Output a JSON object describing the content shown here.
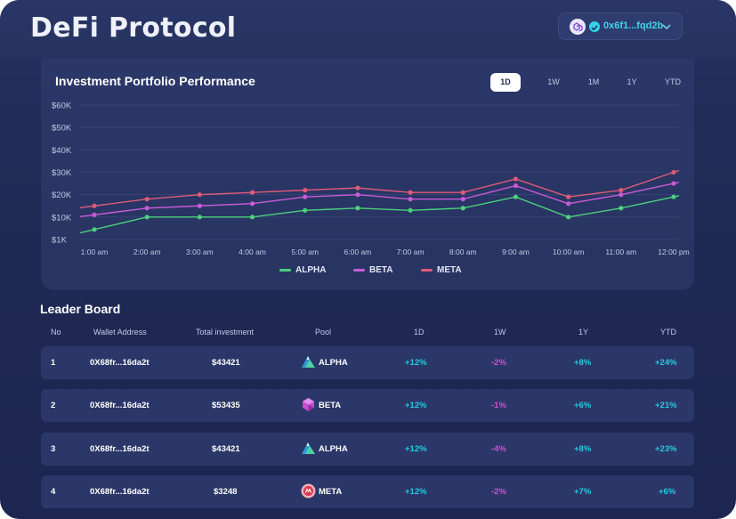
{
  "app": {
    "title": "DeFi Protocol",
    "wallet_address": "0x6f1...fqd2b"
  },
  "chart_section": {
    "title": "Investment Portfolio Performance",
    "ranges": [
      "1D",
      "1W",
      "1M",
      "1Y",
      "YTD"
    ],
    "active_range": "1D"
  },
  "chart_data": {
    "type": "line",
    "title": "Investment Portfolio Performance",
    "x": [
      "1:00 am",
      "2:00 am",
      "3:00 am",
      "4:00 am",
      "5:00 am",
      "6:00 am",
      "7:00 am",
      "8:00 am",
      "9:00 am",
      "10:00 am",
      "11:00 am",
      "12:00 pm"
    ],
    "y_ticks": [
      "$60K",
      "$50K",
      "$40K",
      "$30K",
      "$20K",
      "$10K",
      "$1K"
    ],
    "ylim": [
      1,
      60
    ],
    "y_unit": "K",
    "grid": true,
    "legend_position": "bottom",
    "series": [
      {
        "name": "ALPHA",
        "color": "#4cd07d",
        "values": [
          5,
          10,
          10,
          10,
          13,
          14,
          13,
          14,
          19,
          10,
          14,
          19
        ]
      },
      {
        "name": "BETA",
        "color": "#c75bd6",
        "values": [
          11,
          14,
          15,
          16,
          19,
          20,
          18,
          18,
          24,
          16,
          20,
          25
        ]
      },
      {
        "name": "META",
        "color": "#e05a78",
        "values": [
          15,
          18,
          20,
          21,
          22,
          23,
          21,
          21,
          27,
          19,
          22,
          30
        ]
      }
    ]
  },
  "leaderboard": {
    "title": "Leader Board",
    "columns": [
      "No",
      "Wallet Address",
      "Total investment",
      "Pool",
      "1D",
      "1W",
      "1Y",
      "YTD"
    ],
    "rows": [
      {
        "no": "1",
        "wallet": "0X68fr...16da2t",
        "investment": "$43421",
        "pool": "ALPHA",
        "pool_icon": "alpha-mountain-icon",
        "d1": "+12%",
        "w1": "-2%",
        "y1": "+8%",
        "ytd": "+24%"
      },
      {
        "no": "2",
        "wallet": "0X68fr...16da2t",
        "investment": "$53435",
        "pool": "BETA",
        "pool_icon": "beta-gem-icon",
        "d1": "+12%",
        "w1": "-1%",
        "y1": "+6%",
        "ytd": "+21%"
      },
      {
        "no": "3",
        "wallet": "0X68fr...16da2t",
        "investment": "$43421",
        "pool": "ALPHA",
        "pool_icon": "alpha-mountain-icon",
        "d1": "+12%",
        "w1": "-4%",
        "y1": "+8%",
        "ytd": "+23%"
      },
      {
        "no": "4",
        "wallet": "0X68fr...16da2t",
        "investment": "$3248",
        "pool": "META",
        "pool_icon": "meta-coin-icon",
        "d1": "+12%",
        "w1": "-2%",
        "y1": "+7%",
        "ytd": "+6%"
      }
    ]
  }
}
